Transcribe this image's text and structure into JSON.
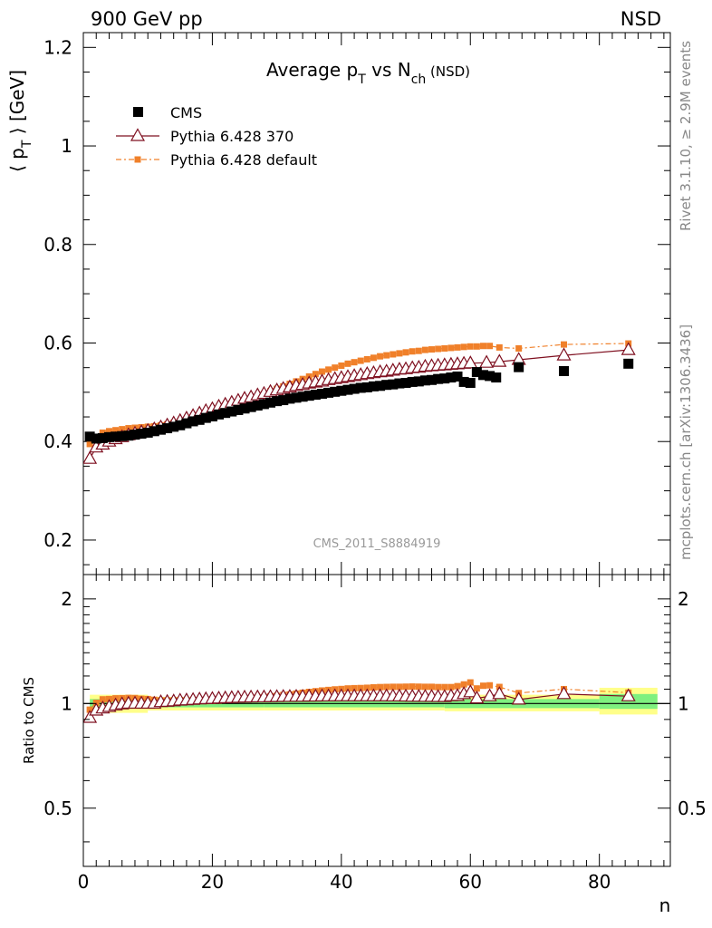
{
  "header": {
    "left_label": "900 GeV pp",
    "right_label": "NSD"
  },
  "side_text": {
    "rivet": "Rivet 3.1.10, ≥ 2.9M events",
    "mcplots": "mcplots.cern.ch [arXiv:1306.3436]"
  },
  "watermark": "CMS_2011_S8884919",
  "chart_data": [
    {
      "type": "scatter",
      "title": {
        "main": "Average p",
        "sub1": "T",
        "mid": " vs N",
        "sub2": "ch",
        "tail": " (NSD)"
      },
      "ylabel": {
        "pre": "⟨ p",
        "sub": "T",
        "post": " ⟩ [GeV]"
      },
      "xlim": [
        0,
        91
      ],
      "ylim": [
        0.13,
        1.23
      ],
      "xticks": [
        0,
        20,
        40,
        60,
        80
      ],
      "yticks": [
        0.2,
        0.4,
        0.6,
        0.8,
        1,
        1.2
      ],
      "ytick_labels": [
        "0.2",
        "0.4",
        "0.6",
        "0.8",
        "1",
        "1.2"
      ],
      "legend_position": "top-left",
      "legend": [
        "CMS",
        "Pythia 6.428 370",
        "Pythia 6.428 default"
      ],
      "series": [
        {
          "name": "CMS",
          "color": "#000000",
          "marker": "square",
          "x": [
            1,
            2,
            3,
            4,
            5,
            6,
            7,
            8,
            9,
            10,
            11,
            12,
            13,
            14,
            15,
            16,
            17,
            18,
            19,
            20,
            21,
            22,
            23,
            24,
            25,
            26,
            27,
            28,
            29,
            30,
            31,
            32,
            33,
            34,
            35,
            36,
            37,
            38,
            39,
            40,
            41,
            42,
            43,
            44,
            45,
            46,
            47,
            48,
            49,
            50,
            51,
            52,
            53,
            54,
            55,
            56,
            57,
            58,
            59,
            60,
            61,
            62,
            63,
            64,
            67.5,
            74.5,
            84.5
          ],
          "y": [
            0.41,
            0.406,
            0.407,
            0.409,
            0.41,
            0.411,
            0.412,
            0.414,
            0.416,
            0.418,
            0.421,
            0.424,
            0.427,
            0.43,
            0.433,
            0.437,
            0.441,
            0.444,
            0.448,
            0.451,
            0.455,
            0.458,
            0.461,
            0.464,
            0.467,
            0.47,
            0.473,
            0.476,
            0.479,
            0.482,
            0.484,
            0.487,
            0.489,
            0.491,
            0.493,
            0.495,
            0.497,
            0.499,
            0.501,
            0.503,
            0.505,
            0.507,
            0.509,
            0.51,
            0.512,
            0.513,
            0.515,
            0.516,
            0.518,
            0.519,
            0.521,
            0.522,
            0.524,
            0.525,
            0.527,
            0.528,
            0.53,
            0.532,
            0.521,
            0.519,
            0.541,
            0.535,
            0.533,
            0.53,
            0.551,
            0.543,
            0.558
          ]
        },
        {
          "name": "Pythia 6.428 370",
          "color": "#7f1020",
          "marker": "triangle-open",
          "x": [
            1,
            2,
            3,
            4,
            5,
            6,
            7,
            8,
            9,
            10,
            11,
            12,
            13,
            14,
            15,
            16,
            17,
            18,
            19,
            20,
            21,
            22,
            23,
            24,
            25,
            26,
            27,
            28,
            29,
            30,
            31,
            32,
            33,
            34,
            35,
            36,
            37,
            38,
            39,
            40,
            41,
            42,
            43,
            44,
            45,
            46,
            47,
            48,
            49,
            50,
            51,
            52,
            53,
            54,
            55,
            56,
            57,
            58,
            59,
            60,
            62.5,
            64.5,
            67.5,
            74.5,
            84.5
          ],
          "y": [
            0.365,
            0.388,
            0.394,
            0.4,
            0.405,
            0.409,
            0.413,
            0.416,
            0.419,
            0.422,
            0.425,
            0.429,
            0.433,
            0.437,
            0.442,
            0.447,
            0.452,
            0.457,
            0.462,
            0.466,
            0.471,
            0.475,
            0.479,
            0.483,
            0.487,
            0.49,
            0.494,
            0.497,
            0.501,
            0.504,
            0.507,
            0.51,
            0.513,
            0.515,
            0.518,
            0.52,
            0.522,
            0.525,
            0.527,
            0.529,
            0.531,
            0.533,
            0.535,
            0.537,
            0.539,
            0.541,
            0.542,
            0.544,
            0.546,
            0.547,
            0.549,
            0.55,
            0.552,
            0.553,
            0.554,
            0.555,
            0.556,
            0.557,
            0.558,
            0.559,
            0.56,
            0.562,
            0.566,
            0.575,
            0.586
          ]
        },
        {
          "name": "Pythia 6.428 default",
          "color": "#f0802a",
          "marker": "square-small",
          "x": [
            1,
            2,
            3,
            4,
            5,
            6,
            7,
            8,
            9,
            10,
            11,
            12,
            13,
            14,
            15,
            16,
            17,
            18,
            19,
            20,
            21,
            22,
            23,
            24,
            25,
            26,
            27,
            28,
            29,
            30,
            31,
            32,
            33,
            34,
            35,
            36,
            37,
            38,
            39,
            40,
            41,
            42,
            43,
            44,
            45,
            46,
            47,
            48,
            49,
            50,
            51,
            52,
            53,
            54,
            55,
            56,
            57,
            58,
            59,
            60,
            61,
            62,
            63,
            64.5,
            67.5,
            74.5,
            84.5
          ],
          "y": [
            0.395,
            0.409,
            0.418,
            0.421,
            0.423,
            0.425,
            0.427,
            0.428,
            0.429,
            0.43,
            0.431,
            0.433,
            0.435,
            0.438,
            0.441,
            0.444,
            0.448,
            0.452,
            0.456,
            0.46,
            0.464,
            0.469,
            0.473,
            0.478,
            0.482,
            0.487,
            0.492,
            0.497,
            0.502,
            0.507,
            0.512,
            0.517,
            0.522,
            0.527,
            0.532,
            0.537,
            0.542,
            0.546,
            0.55,
            0.554,
            0.558,
            0.561,
            0.564,
            0.567,
            0.57,
            0.573,
            0.575,
            0.577,
            0.579,
            0.581,
            0.583,
            0.584,
            0.586,
            0.587,
            0.588,
            0.589,
            0.59,
            0.591,
            0.592,
            0.593,
            0.593,
            0.594,
            0.594,
            0.591,
            0.589,
            0.597,
            0.599
          ]
        }
      ]
    },
    {
      "type": "scatter",
      "ylabel": "Ratio to CMS",
      "xlabel": "n",
      "xlim": [
        0,
        91
      ],
      "ylim": [
        0.34,
        2.35
      ],
      "yscale": "log",
      "xticks": [
        0,
        20,
        40,
        60,
        80
      ],
      "xtick_labels": [
        "0",
        "20",
        "40",
        "60",
        "80"
      ],
      "yticks": [
        0.5,
        1,
        2
      ],
      "ytick_labels": [
        "0.5",
        "1",
        "2"
      ],
      "reference_line": 1,
      "bands": {
        "inner_color": "#7ff07f",
        "outer_color": "#ffff8a",
        "segments": [
          {
            "x": [
              1,
              10
            ],
            "inner": [
              0.97,
              1.03
            ],
            "outer": [
              0.94,
              1.06
            ]
          },
          {
            "x": [
              10,
              28
            ],
            "inner": [
              0.975,
              1.025
            ],
            "outer": [
              0.955,
              1.045
            ]
          },
          {
            "x": [
              28,
              56
            ],
            "inner": [
              0.975,
              1.025
            ],
            "outer": [
              0.955,
              1.05
            ]
          },
          {
            "x": [
              56,
              80
            ],
            "inner": [
              0.97,
              1.03
            ],
            "outer": [
              0.95,
              1.06
            ]
          },
          {
            "x": [
              80,
              89
            ],
            "inner": [
              0.965,
              1.065
            ],
            "outer": [
              0.93,
              1.11
            ]
          }
        ]
      },
      "series": [
        {
          "name": "Pythia 6.428 370",
          "color": "#7f1020",
          "marker": "triangle-open",
          "x": [
            1,
            2,
            3,
            4,
            5,
            6,
            7,
            8,
            9,
            10,
            11,
            12,
            13,
            14,
            15,
            16,
            17,
            18,
            19,
            20,
            21,
            22,
            23,
            24,
            25,
            26,
            27,
            28,
            29,
            30,
            31,
            32,
            33,
            34,
            35,
            36,
            37,
            38,
            39,
            40,
            41,
            42,
            43,
            44,
            45,
            46,
            47,
            48,
            49,
            50,
            51,
            52,
            53,
            54,
            55,
            56,
            57,
            58,
            59,
            60,
            61,
            63,
            64.5,
            67.5,
            74.5,
            84.5
          ],
          "y": [
            0.91,
            0.955,
            0.968,
            0.978,
            0.988,
            0.995,
            1.0,
            1.0,
            1.0,
            1.0,
            1.0,
            1.01,
            1.012,
            1.015,
            1.02,
            1.022,
            1.025,
            1.028,
            1.03,
            1.032,
            1.034,
            1.036,
            1.038,
            1.04,
            1.041,
            1.042,
            1.043,
            1.043,
            1.044,
            1.045,
            1.046,
            1.046,
            1.047,
            1.047,
            1.048,
            1.048,
            1.049,
            1.049,
            1.05,
            1.05,
            1.05,
            1.05,
            1.05,
            1.05,
            1.05,
            1.05,
            1.05,
            1.049,
            1.049,
            1.048,
            1.047,
            1.047,
            1.046,
            1.046,
            1.045,
            1.045,
            1.05,
            1.052,
            1.065,
            1.078,
            1.035,
            1.05,
            1.065,
            1.027,
            1.065,
            1.05
          ]
        },
        {
          "name": "Pythia 6.428 default",
          "color": "#f0802a",
          "marker": "square-small",
          "x": [
            1,
            2,
            3,
            4,
            5,
            6,
            7,
            8,
            9,
            10,
            11,
            12,
            13,
            14,
            15,
            16,
            17,
            18,
            19,
            20,
            21,
            22,
            23,
            24,
            25,
            26,
            27,
            28,
            29,
            30,
            31,
            32,
            33,
            34,
            35,
            36,
            37,
            38,
            39,
            40,
            41,
            42,
            43,
            44,
            45,
            46,
            47,
            48,
            49,
            50,
            51,
            52,
            53,
            54,
            55,
            56,
            57,
            58,
            59,
            60,
            61,
            62,
            63,
            64.5,
            67.5,
            74.5,
            84.5
          ],
          "y": [
            0.96,
            1.005,
            1.028,
            1.03,
            1.035,
            1.036,
            1.038,
            1.037,
            1.032,
            1.03,
            1.025,
            1.02,
            1.02,
            1.02,
            1.022,
            1.018,
            1.015,
            1.016,
            1.016,
            1.018,
            1.02,
            1.024,
            1.026,
            1.03,
            1.032,
            1.036,
            1.04,
            1.044,
            1.048,
            1.052,
            1.058,
            1.062,
            1.068,
            1.074,
            1.08,
            1.085,
            1.09,
            1.094,
            1.098,
            1.101,
            1.105,
            1.107,
            1.108,
            1.11,
            1.113,
            1.115,
            1.116,
            1.117,
            1.117,
            1.118,
            1.119,
            1.118,
            1.117,
            1.117,
            1.115,
            1.115,
            1.115,
            1.122,
            1.135,
            1.15,
            1.105,
            1.125,
            1.128,
            1.116,
            1.072,
            1.1,
            1.075
          ]
        }
      ]
    }
  ]
}
